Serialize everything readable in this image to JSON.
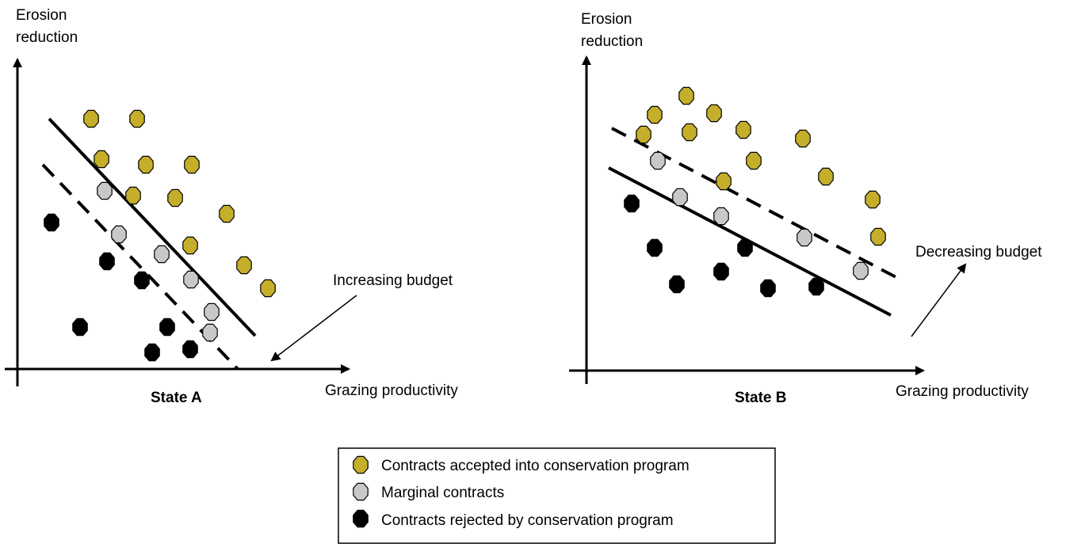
{
  "panels": [
    {
      "id": "state-a",
      "title": "State A",
      "y_axis_label": [
        "Erosion",
        "reduction"
      ],
      "x_axis_label": "Grazing productivity",
      "annotation": "Increasing budget"
    },
    {
      "id": "state-b",
      "title": "State B",
      "y_axis_label": [
        "Erosion",
        "reduction"
      ],
      "x_axis_label": "Grazing productivity",
      "annotation": "Decreasing budget"
    }
  ],
  "legend": {
    "items": [
      {
        "label": "Contracts accepted into conservation program",
        "category": "accepted"
      },
      {
        "label": "Marginal contracts",
        "category": "marginal"
      },
      {
        "label": "Contracts rejected by conservation program",
        "category": "rejected"
      }
    ]
  },
  "colors": {
    "accepted": "#c4ae2a",
    "marginal": "#c8c8c8",
    "rejected": "#000000",
    "line": "#000000"
  }
}
